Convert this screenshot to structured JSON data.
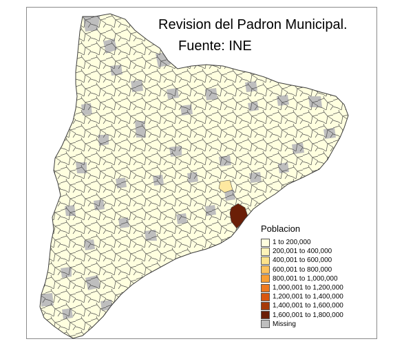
{
  "map": {
    "title_line1": "Revision del Padron Municipal.",
    "title_line2": "Fuente: INE",
    "fill_colors": {
      "base": "#ffffdf",
      "missing": "#bebebe",
      "light": "#fdeaa0",
      "dark": "#6b1f07"
    },
    "legend": {
      "title": "Poblacion",
      "items": [
        {
          "label": "1 to 200,000",
          "color": "#ffffdf"
        },
        {
          "label": "200,001 to 400,000",
          "color": "#fdf3b8"
        },
        {
          "label": "400,001 to 600,000",
          "color": "#fde38a"
        },
        {
          "label": "600,001 to 800,000",
          "color": "#fdc25c"
        },
        {
          "label": "800,001 to 1,000,000",
          "color": "#f99f35"
        },
        {
          "label": "1,000,001 to 1,200,000",
          "color": "#ee7a20"
        },
        {
          "label": "1,200,001 to 1,400,000",
          "color": "#d85710"
        },
        {
          "label": "1,400,001 to 1,600,000",
          "color": "#a63a08"
        },
        {
          "label": "1,600,001 to 1,800,000",
          "color": "#6b1f07"
        },
        {
          "label": "Missing",
          "color": "#bebebe"
        }
      ]
    }
  }
}
